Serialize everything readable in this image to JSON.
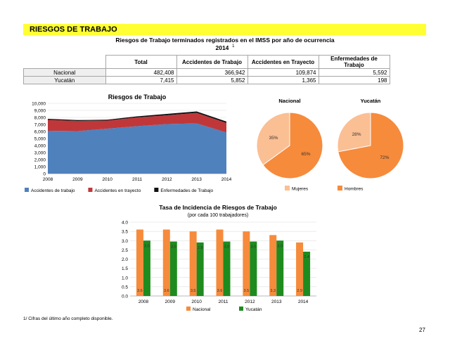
{
  "header": {
    "banner": "RIESGOS DE TRABAJO",
    "subtitle": "Riesgos de Trabajo terminados registrados en el IMSS por año de ocurrencia",
    "year_line": "2014",
    "year_note": "1"
  },
  "table": {
    "columns": [
      "Total",
      "Accidentes de Trabajo",
      "Accidentes en Trayecto",
      "Enfermedades de Trabajo"
    ],
    "rows": [
      {
        "label": "Nacional",
        "values": [
          "482,408",
          "366,942",
          "109,874",
          "5,592"
        ]
      },
      {
        "label": "Yucatán",
        "values": [
          "7,415",
          "5,852",
          "1,365",
          "198"
        ]
      }
    ]
  },
  "chart_data": [
    {
      "type": "area",
      "title": "Riesgos de Trabajo",
      "x": [
        "2008",
        "2009",
        "2010",
        "2011",
        "2012",
        "2013",
        "2014"
      ],
      "series": [
        {
          "name": "Accidentes de trabajo",
          "values": [
            6100,
            6050,
            6400,
            6750,
            7050,
            7150,
            5852
          ],
          "color": "#4f81bd"
        },
        {
          "name": "Accidentes en trayecto",
          "values": [
            1550,
            1450,
            1150,
            1250,
            1250,
            1500,
            1365
          ],
          "color": "#c0373a"
        },
        {
          "name": "Enfermedades de Trabajo",
          "values": [
            150,
            120,
            120,
            150,
            200,
            200,
            198
          ],
          "color": "#111111"
        }
      ],
      "yticks": [
        "0",
        "1,000",
        "2,000",
        "3,000",
        "4,000",
        "5,000",
        "6,000",
        "7,000",
        "8,000",
        "9,000",
        "10,000"
      ],
      "ylim": [
        0,
        10000
      ]
    },
    {
      "type": "pie",
      "title": "Nacional",
      "labels": [
        "Mujeres",
        "Hombres"
      ],
      "values": [
        35,
        65
      ],
      "display": [
        "35%",
        "65%"
      ],
      "colors": [
        "#fbbf94",
        "#f68b3c"
      ]
    },
    {
      "type": "pie",
      "title": "Yucatán",
      "labels": [
        "Mujeres",
        "Hombres"
      ],
      "values": [
        28,
        72
      ],
      "display": [
        "28%",
        "72%"
      ],
      "colors": [
        "#fbbf94",
        "#f68b3c"
      ]
    },
    {
      "type": "bar",
      "title": "Tasa de Incidencia de Riesgos de Trabajo",
      "subtitle": "(por cada 100 trabajadores)",
      "categories": [
        "2008",
        "2009",
        "2010",
        "2011",
        "2012",
        "2013",
        "2014"
      ],
      "series": [
        {
          "name": "Nacional",
          "values": [
            3.6,
            3.6,
            3.5,
            3.6,
            3.5,
            3.3,
            2.9
          ],
          "labels": [
            "3.6",
            "3.6",
            "3.5",
            "3.6",
            "3.5",
            "3.3",
            "2.9"
          ],
          "color": "#f68b3c"
        },
        {
          "name": "Yucatán",
          "values": [
            3.0,
            2.95,
            2.9,
            2.95,
            2.95,
            3.0,
            2.4
          ],
          "labels": [
            "3.0",
            "3.0",
            "2.9",
            "3.0",
            "3.0",
            "3.0",
            "2.4"
          ],
          "color": "#1e8b1e"
        }
      ],
      "yticks": [
        "0.0",
        "0.5",
        "1.0",
        "1.5",
        "2.0",
        "2.5",
        "3.0",
        "3.5",
        "4.0"
      ],
      "ylim": [
        0,
        4
      ]
    }
  ],
  "pie_legend": [
    "Mujeres",
    "Hombres"
  ],
  "footnote": "1/  Cifras del último año completo disponible.",
  "page_number": "27"
}
